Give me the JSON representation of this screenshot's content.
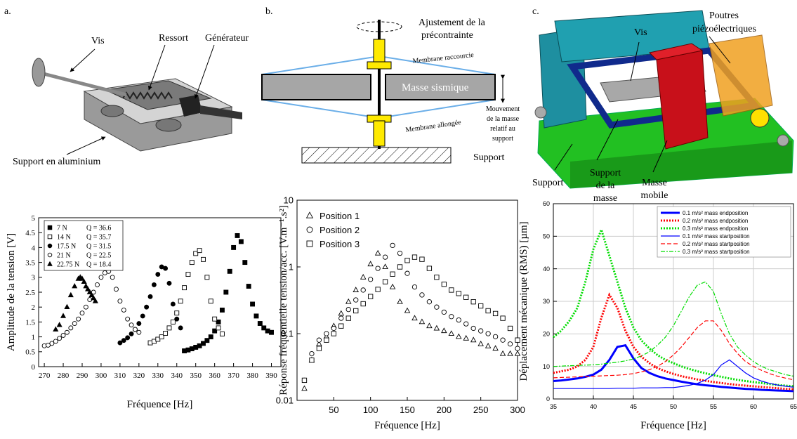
{
  "panel_labels": [
    "a.",
    "b.",
    "c."
  ],
  "diagrams": [
    {
      "labels": [
        {
          "lines": [
            "Vis"
          ]
        },
        {
          "lines": [
            "Ressort"
          ]
        },
        {
          "lines": [
            "Générateur"
          ]
        },
        {
          "lines": [
            "Support en aluminium"
          ]
        }
      ]
    },
    {
      "labels": [
        {
          "lines": [
            "Ajustement de la",
            "précontrainte"
          ]
        },
        {
          "lines": [
            "Membrane raccourcie"
          ]
        },
        {
          "lines": [
            "Masse sismique"
          ]
        },
        {
          "lines": [
            "Membrane allongée"
          ]
        },
        {
          "lines": [
            "Mouvement",
            "de la masse",
            "relatif au",
            "support"
          ]
        },
        {
          "lines": [
            "Support"
          ]
        }
      ]
    },
    {
      "labels": [
        {
          "lines": [
            "Vis"
          ]
        },
        {
          "lines": [
            "Poutres",
            "piézoélectriques"
          ]
        },
        {
          "lines": [
            "Support"
          ]
        },
        {
          "lines": [
            "Support",
            "de la",
            "masse"
          ]
        },
        {
          "lines": [
            "Masse",
            "mobile"
          ]
        }
      ]
    }
  ],
  "chart_data": [
    {
      "type": "scatter",
      "x_label": "Fréquence [Hz]",
      "y_label": "Amplitude de la tension [V]",
      "xlim": [
        267,
        395
      ],
      "xticks": [
        270,
        280,
        290,
        300,
        310,
        320,
        330,
        340,
        350,
        360,
        370,
        380,
        390
      ],
      "ylim": [
        0,
        5
      ],
      "yticks": [
        0,
        0.5,
        1,
        1.5,
        2,
        2.5,
        3,
        3.5,
        4,
        4.5,
        5
      ],
      "legend": "upper left",
      "series": [
        {
          "name": "7 N",
          "q_label": "Q = 36.6",
          "marker": "square",
          "color": "#000000",
          "x": [
            344,
            346,
            348,
            350,
            352,
            354,
            356,
            358,
            360,
            362,
            364,
            366,
            368,
            370,
            372,
            374,
            376,
            378,
            380,
            382,
            384,
            386,
            388,
            390
          ],
          "values": [
            0.53,
            0.56,
            0.6,
            0.65,
            0.7,
            0.78,
            0.88,
            1.0,
            1.2,
            1.5,
            1.9,
            2.5,
            3.2,
            4.0,
            4.4,
            4.2,
            3.5,
            2.7,
            2.1,
            1.7,
            1.45,
            1.3,
            1.2,
            1.15
          ]
        },
        {
          "name": "14 N",
          "q_label": "Q = 35.7",
          "marker": "square-open",
          "color": "#000000",
          "x": [
            326,
            328,
            330,
            332,
            334,
            336,
            338,
            340,
            342,
            344,
            346,
            348,
            350,
            352,
            354,
            356,
            358,
            360,
            362,
            364
          ],
          "values": [
            0.8,
            0.85,
            0.92,
            1.0,
            1.12,
            1.3,
            1.5,
            1.8,
            2.2,
            2.65,
            3.1,
            3.5,
            3.8,
            3.9,
            3.6,
            3.0,
            2.2,
            1.6,
            1.3,
            1.1
          ]
        },
        {
          "name": "17.5 N",
          "q_label": "Q = 31.5",
          "marker": "circle",
          "color": "#000000",
          "x": [
            310,
            312,
            314,
            316,
            318,
            320,
            322,
            324,
            326,
            328,
            330,
            332,
            334,
            336,
            338,
            340,
            342
          ],
          "values": [
            0.8,
            0.88,
            0.97,
            1.1,
            1.25,
            1.45,
            1.7,
            2.0,
            2.35,
            2.75,
            3.1,
            3.35,
            3.3,
            2.8,
            2.1,
            1.6,
            1.3
          ]
        },
        {
          "name": "21 N",
          "q_label": "Q = 22.5",
          "marker": "circle-open",
          "color": "#000000",
          "x": [
            270,
            272,
            274,
            276,
            278,
            280,
            282,
            284,
            286,
            288,
            290,
            292,
            294,
            296,
            298,
            300,
            302,
            304,
            306,
            308,
            310,
            312,
            314,
            316,
            318,
            320
          ],
          "values": [
            0.7,
            0.72,
            0.78,
            0.85,
            0.95,
            1.05,
            1.15,
            1.3,
            1.45,
            1.6,
            1.8,
            2.0,
            2.25,
            2.5,
            2.75,
            3.0,
            3.15,
            3.2,
            3.0,
            2.6,
            2.2,
            1.9,
            1.6,
            1.4,
            1.25,
            1.15
          ]
        },
        {
          "name": "22.75 N",
          "q_label": "Q = 18.4",
          "marker": "triangle",
          "color": "#000000",
          "x": [
            276,
            278,
            280,
            282,
            284,
            286,
            288,
            289,
            290,
            291,
            292,
            293,
            294,
            295,
            296,
            297
          ],
          "values": [
            1.25,
            1.4,
            1.7,
            2.0,
            2.4,
            2.7,
            2.95,
            3.0,
            2.95,
            2.85,
            2.7,
            2.6,
            2.5,
            2.4,
            2.3,
            2.2
          ]
        }
      ]
    },
    {
      "type": "scatter",
      "x_label": "Fréquence [Hz]",
      "y_label": "Réponse fréquentielle tension/acc.  [V.m⁻¹.s²]",
      "log_y": true,
      "xlim": [
        0,
        300
      ],
      "xticks": [
        50,
        100,
        150,
        200,
        250,
        300
      ],
      "ylim": [
        0.01,
        10
      ],
      "yticks": [
        0.01,
        0.1,
        1,
        10
      ],
      "legend": "upper left",
      "x": [
        10,
        20,
        30,
        40,
        50,
        60,
        70,
        80,
        90,
        100,
        110,
        120,
        130,
        140,
        150,
        160,
        170,
        180,
        190,
        200,
        210,
        220,
        230,
        240,
        250,
        260,
        270,
        280,
        290,
        300
      ],
      "series": [
        {
          "name": "Position 1",
          "marker": "triangle-open",
          "color": "#000000",
          "values": [
            0.015,
            0.04,
            0.07,
            0.09,
            0.13,
            0.2,
            0.3,
            0.45,
            0.7,
            1.1,
            1.6,
            1.0,
            0.5,
            0.3,
            0.22,
            0.17,
            0.15,
            0.13,
            0.12,
            0.11,
            0.1,
            0.09,
            0.085,
            0.08,
            0.07,
            0.065,
            0.06,
            0.05,
            0.05,
            0.05
          ]
        },
        {
          "name": "Position 2",
          "marker": "circle-open",
          "color": "#000000",
          "values": [
            0.02,
            0.05,
            0.08,
            0.1,
            0.12,
            0.17,
            0.23,
            0.32,
            0.45,
            0.65,
            0.95,
            1.4,
            2.1,
            1.6,
            0.8,
            0.5,
            0.38,
            0.3,
            0.25,
            0.21,
            0.18,
            0.16,
            0.14,
            0.12,
            0.11,
            0.1,
            0.09,
            0.08,
            0.07,
            0.06
          ]
        },
        {
          "name": "Position 3",
          "marker": "square-open",
          "color": "#000000",
          "values": [
            0.02,
            0.04,
            0.06,
            0.08,
            0.1,
            0.13,
            0.17,
            0.22,
            0.28,
            0.36,
            0.46,
            0.6,
            0.78,
            1.0,
            1.25,
            1.4,
            1.3,
            0.95,
            0.7,
            0.55,
            0.45,
            0.4,
            0.35,
            0.3,
            0.26,
            0.22,
            0.2,
            0.17,
            0.12,
            0.08
          ]
        }
      ]
    },
    {
      "type": "line",
      "x_label": "Fréquence [Hz]",
      "y_label": "Déplacement mécanique (RMS) [µm]",
      "xlim": [
        35,
        65
      ],
      "xticks": [
        35,
        40,
        45,
        50,
        55,
        60,
        65
      ],
      "ylim": [
        0,
        60
      ],
      "yticks": [
        0,
        10,
        20,
        30,
        40,
        50,
        60
      ],
      "grid": true,
      "legend": "upper right",
      "x": [
        35,
        36,
        37,
        38,
        39,
        40,
        41,
        42,
        43,
        44,
        45,
        46,
        47,
        48,
        49,
        50,
        51,
        52,
        53,
        54,
        55,
        56,
        57,
        58,
        59,
        60,
        61,
        62,
        63,
        64,
        65
      ],
      "series": [
        {
          "name": "0.1 m/s² mass endposition",
          "color": "#0000ff",
          "linewidth": 3,
          "values": [
            5.5,
            5.7,
            6,
            6.3,
            6.8,
            7.5,
            9,
            12,
            16,
            16.5,
            12.5,
            9.5,
            8,
            7,
            6.3,
            5.8,
            5.3,
            4.9,
            4.5,
            4.2,
            4,
            3.7,
            3.5,
            3.3,
            3.1,
            3,
            2.8,
            2.7,
            2.6,
            2.5,
            2.4
          ]
        },
        {
          "name": "0.2 m/s² mass endposition",
          "color": "#ff0000",
          "linewidth": 3,
          "dash": "dotted",
          "values": [
            8,
            8.5,
            9,
            10,
            12,
            16,
            25,
            32,
            28,
            21,
            16,
            13,
            11,
            9.5,
            8.5,
            7.7,
            7,
            6.5,
            6,
            5.6,
            5.2,
            4.9,
            4.6,
            4.3,
            4.1,
            3.9,
            3.7,
            3.5,
            3.3,
            3.1,
            3
          ]
        },
        {
          "name": "0.3 m/s² mass endposition",
          "color": "#00dd00",
          "linewidth": 3,
          "dash": "dotted",
          "values": [
            19,
            21,
            24,
            28,
            36,
            46,
            52,
            44,
            36,
            28,
            22,
            18,
            15.5,
            13.5,
            12,
            11,
            10,
            9.2,
            8.5,
            7.9,
            7.3,
            6.8,
            6.3,
            5.9,
            5.5,
            5.2,
            4.9,
            4.6,
            4.3,
            4.1,
            3.9
          ]
        },
        {
          "name": "0.1 m/s² mass startposition",
          "color": "#0000ff",
          "linewidth": 1.2,
          "values": [
            3.2,
            3.2,
            3.2,
            3.2,
            3.2,
            3.2,
            3.2,
            3.2,
            3.3,
            3.3,
            3.3,
            3.4,
            3.4,
            3.4,
            3.5,
            3.5,
            3.8,
            4.2,
            4.8,
            5.8,
            7.5,
            10.5,
            12,
            10,
            8,
            6.5,
            5.5,
            4.8,
            4.3,
            3.9,
            3.6
          ]
        },
        {
          "name": "0.2 m/s² mass startposition",
          "color": "#ff0000",
          "linewidth": 1.2,
          "dash": "dashed",
          "values": [
            6.5,
            6.6,
            6.7,
            6.8,
            6.9,
            7,
            7.1,
            7.2,
            7.3,
            7.5,
            7.8,
            8.3,
            9,
            10,
            11.5,
            13.5,
            16,
            19,
            22,
            24,
            24,
            21,
            17,
            14,
            11.5,
            10,
            8.8,
            7.8,
            7,
            6.4,
            5.9
          ]
        },
        {
          "name": "0.3 m/s² mass startposition",
          "color": "#00dd00",
          "linewidth": 1.2,
          "dash": "dashdot",
          "values": [
            10,
            10.1,
            10.2,
            10.3,
            10.4,
            10.5,
            10.7,
            11,
            11.3,
            11.7,
            12.3,
            13.2,
            14.5,
            16.5,
            19,
            22.5,
            27,
            31.5,
            35,
            36,
            33,
            26,
            20,
            16,
            13.5,
            11.5,
            10,
            9,
            8.2,
            7.5,
            7
          ]
        }
      ]
    }
  ]
}
